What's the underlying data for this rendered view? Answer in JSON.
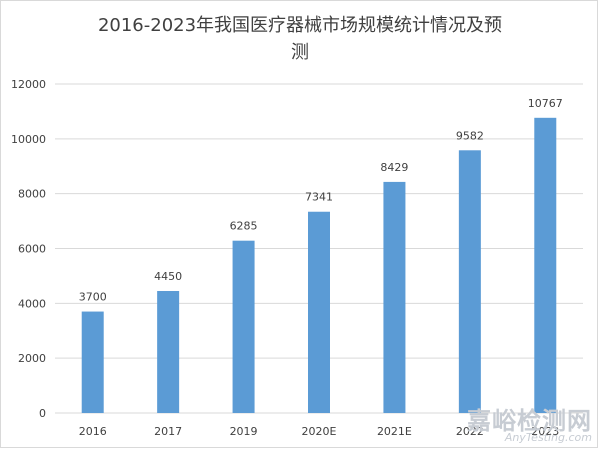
{
  "chart_data": {
    "type": "bar",
    "title_lines": [
      "2016-2023年我国医疗器械市场规模统计情况及预",
      "测"
    ],
    "categories": [
      "2016",
      "2017",
      "2019",
      "2020E",
      "2021E",
      "2022",
      "2023"
    ],
    "values": [
      3700,
      4450,
      6285,
      7341,
      8429,
      9582,
      10767
    ],
    "data_labels": [
      "3700",
      "4450",
      "6285",
      "7341",
      "8429",
      "9582",
      "10767"
    ],
    "y_ticks": [
      "0",
      "2000",
      "4000",
      "6000",
      "8000",
      "10000",
      "12000"
    ],
    "ylim": [
      0,
      12000
    ],
    "xlabel": "",
    "ylabel": "",
    "grid": true,
    "legend": "none",
    "bar_color": "#5b9bd5",
    "grid_color": "#d9d9d9",
    "text_color": "#404040"
  },
  "watermark": {
    "cn": "嘉峪检测网",
    "en": "AnyTesting.com"
  }
}
